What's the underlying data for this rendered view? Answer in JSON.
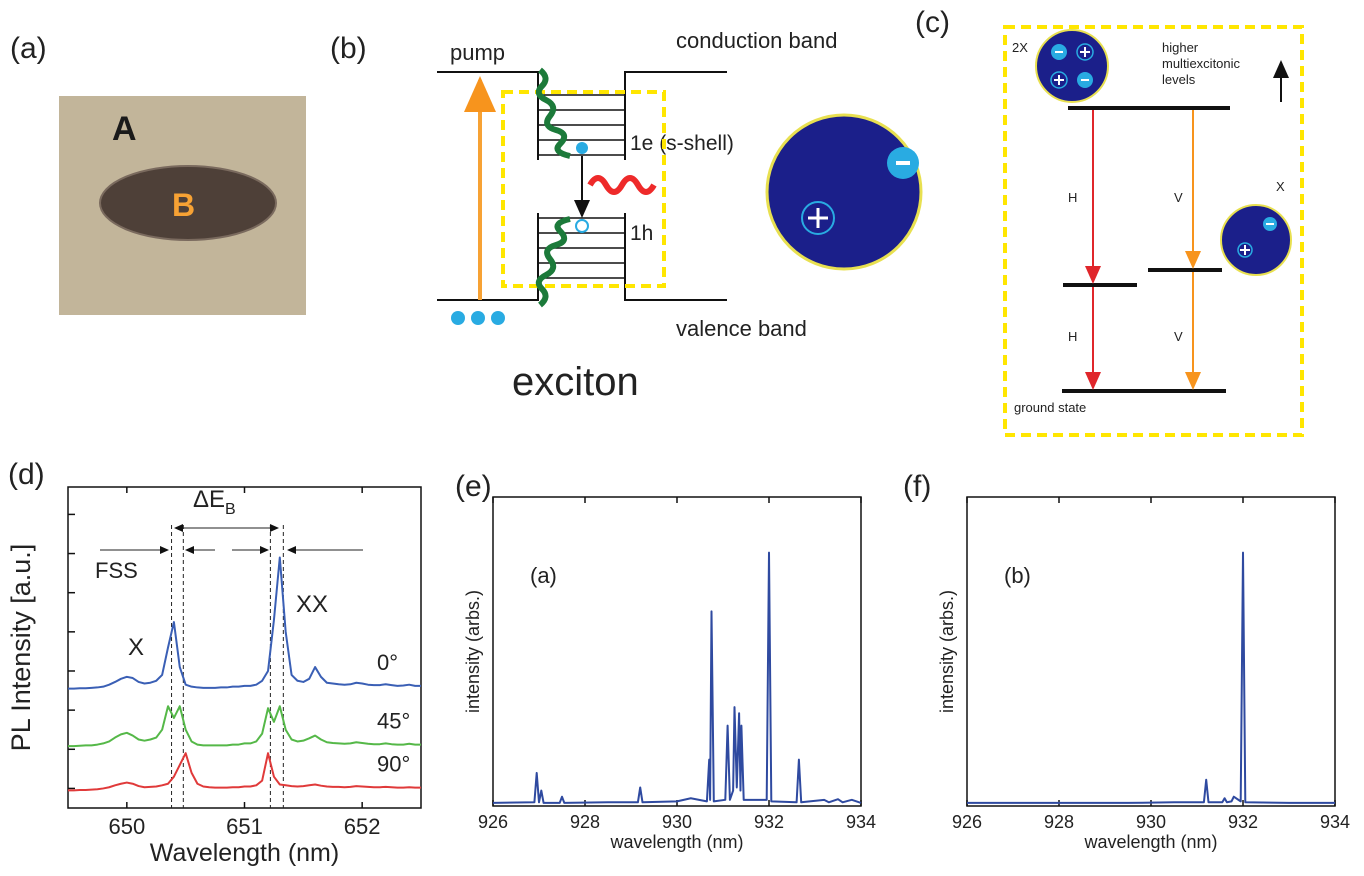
{
  "panel_a": {
    "label": "(a)",
    "region_outer": "A",
    "region_inner": "B"
  },
  "panel_b": {
    "label": "(b)",
    "pump": "pump",
    "conduction_band": "conduction band",
    "valence_band": "valence band",
    "electron_level": "1e (s-shell)",
    "hole_level": "1h",
    "title": "exciton"
  },
  "panel_c": {
    "label": "(c)",
    "biexciton": "2X",
    "exciton": "X",
    "higher_levels": [
      "higher",
      "multiexcitonic",
      "levels"
    ],
    "h_upper": "H",
    "v_upper": "V",
    "h_lower": "H",
    "v_lower": "V",
    "ground_state": "ground state"
  },
  "chart_data": [
    {
      "type": "line",
      "panel_label": "(d)",
      "xlabel": "Wavelength (nm)",
      "ylabel": "PL Intensity [a.u.]",
      "xlim": [
        649.5,
        652.5
      ],
      "xticks": [
        650,
        651,
        652
      ],
      "ylim": [
        -0.5,
        7.7
      ],
      "yticks": [
        0,
        1,
        2,
        3,
        4,
        5,
        6,
        7
      ],
      "show_ytick_labels": false,
      "annotations": {
        "x_peak": "X",
        "xx_peak": "XX",
        "fss": "FSS",
        "delta_e": "ΔE",
        "delta_e_subscript": "B"
      },
      "reference_lines_x": [
        650.38,
        650.48,
        651.22,
        651.33
      ],
      "x": [
        649.5,
        649.55,
        649.6,
        649.65,
        649.7,
        649.75,
        649.8,
        649.85,
        649.9,
        649.95,
        650.0,
        650.05,
        650.1,
        650.15,
        650.2,
        650.25,
        650.3,
        650.35,
        650.4,
        650.45,
        650.5,
        650.55,
        650.6,
        650.65,
        650.7,
        650.75,
        650.8,
        650.85,
        650.9,
        650.95,
        651.0,
        651.05,
        651.1,
        651.15,
        651.2,
        651.25,
        651.3,
        651.35,
        651.4,
        651.45,
        651.5,
        651.55,
        651.6,
        651.65,
        651.7,
        651.75,
        651.8,
        651.85,
        651.9,
        651.95,
        652.0,
        652.05,
        652.1,
        652.15,
        652.2,
        652.25,
        652.3,
        652.35,
        652.4,
        652.45,
        652.5
      ],
      "series": [
        {
          "name": "0°",
          "color": "#3a5fb5",
          "values": [
            2.55,
            2.55,
            2.56,
            2.56,
            2.57,
            2.58,
            2.6,
            2.65,
            2.72,
            2.8,
            2.85,
            2.82,
            2.72,
            2.68,
            2.7,
            2.75,
            2.9,
            3.6,
            4.25,
            3.1,
            2.65,
            2.6,
            2.58,
            2.57,
            2.57,
            2.57,
            2.58,
            2.58,
            2.6,
            2.6,
            2.62,
            2.62,
            2.65,
            2.75,
            3.0,
            4.3,
            5.9,
            4.0,
            2.9,
            2.75,
            2.72,
            2.8,
            3.1,
            2.85,
            2.7,
            2.68,
            2.66,
            2.65,
            2.66,
            2.7,
            2.68,
            2.65,
            2.64,
            2.64,
            2.66,
            2.64,
            2.62,
            2.63,
            2.65,
            2.62,
            2.62
          ]
        },
        {
          "name": "45°",
          "color": "#55b848",
          "values": [
            1.08,
            1.08,
            1.09,
            1.1,
            1.1,
            1.12,
            1.15,
            1.2,
            1.3,
            1.38,
            1.42,
            1.35,
            1.25,
            1.22,
            1.25,
            1.3,
            1.5,
            2.1,
            1.8,
            2.1,
            1.5,
            1.2,
            1.12,
            1.1,
            1.1,
            1.1,
            1.1,
            1.1,
            1.12,
            1.12,
            1.15,
            1.15,
            1.2,
            1.4,
            2.05,
            1.7,
            2.1,
            1.5,
            1.25,
            1.2,
            1.22,
            1.28,
            1.35,
            1.25,
            1.18,
            1.16,
            1.15,
            1.14,
            1.15,
            1.18,
            1.16,
            1.14,
            1.13,
            1.13,
            1.15,
            1.13,
            1.12,
            1.12,
            1.14,
            1.12,
            1.12
          ]
        },
        {
          "name": "90°",
          "color": "#e03a3a",
          "values": [
            -0.05,
            -0.05,
            -0.04,
            -0.04,
            -0.03,
            -0.02,
            0,
            0.03,
            0.08,
            0.12,
            0.15,
            0.12,
            0.06,
            0.03,
            0.04,
            0.05,
            0.08,
            0.12,
            0.3,
            0.6,
            0.9,
            0.4,
            0.12,
            0.05,
            0.03,
            0.02,
            0.02,
            0.02,
            0.03,
            0.03,
            0.05,
            0.05,
            0.08,
            0.2,
            0.9,
            0.3,
            0.1,
            0.08,
            0.06,
            0.05,
            0.06,
            0.08,
            0.1,
            0.07,
            0.05,
            0.04,
            0.04,
            0.03,
            0.04,
            0.06,
            0.05,
            0.04,
            0.03,
            0.03,
            0.04,
            0.03,
            0.02,
            0.02,
            0.03,
            0.02,
            0.02
          ]
        }
      ]
    },
    {
      "type": "line",
      "panel_label": "(e)",
      "inset_label": "(a)",
      "xlabel": "wavelength (nm)",
      "ylabel": "intensity (arbs.)",
      "xlim": [
        926,
        934
      ],
      "xticks": [
        926,
        928,
        930,
        932,
        934
      ],
      "ylim": [
        0,
        1
      ],
      "x": [
        926.0,
        926.9,
        926.95,
        927.0,
        927.05,
        927.1,
        927.45,
        927.5,
        927.55,
        928.5,
        929.15,
        929.2,
        929.25,
        930.0,
        930.3,
        930.65,
        930.7,
        930.72,
        930.75,
        930.8,
        931.05,
        931.1,
        931.15,
        931.22,
        931.25,
        931.3,
        931.35,
        931.38,
        931.4,
        931.45,
        931.95,
        932.0,
        932.05,
        932.6,
        932.65,
        932.7,
        933.2,
        933.3,
        933.5,
        933.6,
        933.8,
        934.0
      ],
      "series": [
        {
          "color": "#2f4aa0",
          "values": [
            0.01,
            0.012,
            0.107,
            0.012,
            0.05,
            0.01,
            0.01,
            0.03,
            0.01,
            0.012,
            0.012,
            0.06,
            0.012,
            0.015,
            0.025,
            0.015,
            0.15,
            0.02,
            0.63,
            0.015,
            0.02,
            0.26,
            0.02,
            0.05,
            0.32,
            0.06,
            0.3,
            0.05,
            0.26,
            0.02,
            0.02,
            0.82,
            0.015,
            0.012,
            0.15,
            0.012,
            0.02,
            0.012,
            0.022,
            0.012,
            0.02,
            0.01
          ]
        }
      ]
    },
    {
      "type": "line",
      "panel_label": "(f)",
      "inset_label": "(b)",
      "xlabel": "wavelength (nm)",
      "ylabel": "intensity (arbs.)",
      "xlim": [
        926,
        934
      ],
      "xticks": [
        926,
        928,
        930,
        932,
        934
      ],
      "ylim": [
        0,
        1
      ],
      "x": [
        926.0,
        929.5,
        930.5,
        931.15,
        931.2,
        931.25,
        931.55,
        931.6,
        931.65,
        931.75,
        931.8,
        931.95,
        932.0,
        932.05,
        933.0,
        934.0
      ],
      "series": [
        {
          "color": "#2f4aa0",
          "values": [
            0.01,
            0.01,
            0.012,
            0.012,
            0.085,
            0.012,
            0.012,
            0.025,
            0.012,
            0.015,
            0.03,
            0.015,
            0.82,
            0.012,
            0.01,
            0.01
          ]
        }
      ]
    }
  ]
}
